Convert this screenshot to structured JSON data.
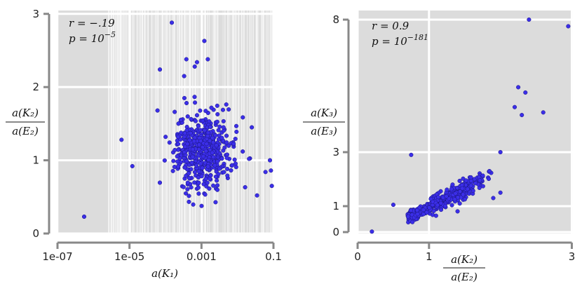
{
  "chart_data": [
    {
      "type": "scatter",
      "x_scale": "log",
      "xlim": [
        1e-07,
        0.1
      ],
      "ylim": [
        0,
        3
      ],
      "x_ticks": [
        1e-07,
        1e-05,
        0.001,
        0.1
      ],
      "x_tick_labels": [
        "1e-07",
        "1e-05",
        "0.001",
        "0.1"
      ],
      "y_ticks": [
        0,
        1,
        2,
        3
      ],
      "y_tick_labels": [
        "0",
        "1",
        "2",
        "3"
      ],
      "xlabel": "a(K₁)",
      "ylabel_num": "a(K₂)",
      "ylabel_den": "a(E₂)",
      "stats": {
        "r": "r = −.19",
        "p_base": "p = 10",
        "p_exp": "−5"
      },
      "grid": true,
      "point_color": "#3b2ee8",
      "points": [
        [
          0.00015,
          2.88
        ],
        [
          0.0012,
          2.63
        ],
        [
          0.0015,
          2.38
        ],
        [
          0.00038,
          2.38
        ],
        [
          0.00075,
          2.34
        ],
        [
          0.00065,
          2.28
        ],
        [
          7e-05,
          2.24
        ],
        [
          0.00033,
          2.15
        ],
        [
          5.5e-07,
          0.23
        ],
        [
          6e-06,
          1.28
        ],
        [
          1.2e-05,
          0.92
        ],
        [
          6e-05,
          1.68
        ],
        [
          0.025,
          1.45
        ],
        [
          0.035,
          0.52
        ],
        [
          0.06,
          0.84
        ],
        [
          0.08,
          1.0
        ],
        [
          0.085,
          0.86
        ],
        [
          0.09,
          0.65
        ],
        [
          0.014,
          1.12
        ],
        [
          0.021,
          1.02
        ]
      ],
      "cluster": {
        "x_center": 0.001,
        "x_spread_decades": 0.7,
        "y_center": 1.12,
        "y_spread": 0.25,
        "count": 520
      }
    },
    {
      "type": "scatter",
      "x_scale": "linear",
      "y_scale": "sqrt-like",
      "xlim": [
        0,
        3
      ],
      "ylim": [
        0,
        8
      ],
      "x_ticks": [
        0,
        1,
        3
      ],
      "x_tick_labels": [
        "0",
        "1",
        "3"
      ],
      "y_ticks": [
        0,
        1,
        3,
        8
      ],
      "y_tick_labels": [
        "0",
        "1",
        "3",
        "8"
      ],
      "xlabel_num": "a(K₂)",
      "xlabel_den": "a(E₂)",
      "ylabel_num": "a(K₃)",
      "ylabel_den": "a(E₃)",
      "stats": {
        "r": "r = 0.9",
        "p_base": "p = 10",
        "p_exp": "−181"
      },
      "grid": true,
      "point_color": "#3b2ee8",
      "points": [
        [
          2.4,
          8.0
        ],
        [
          2.95,
          7.75
        ],
        [
          2.25,
          5.45
        ],
        [
          2.35,
          5.25
        ],
        [
          2.2,
          4.7
        ],
        [
          2.3,
          4.4
        ],
        [
          2.6,
          4.5
        ],
        [
          2.0,
          3.0
        ],
        [
          0.75,
          2.9
        ],
        [
          0.2,
          0.02
        ],
        [
          0.5,
          1.05
        ],
        [
          1.4,
          0.8
        ],
        [
          1.9,
          1.3
        ],
        [
          2.0,
          1.5
        ]
      ],
      "cluster": {
        "x_center": 1.1,
        "x_spread": 0.18,
        "y_slope": 1.35,
        "y_spread": 0.1,
        "count": 420
      }
    }
  ]
}
